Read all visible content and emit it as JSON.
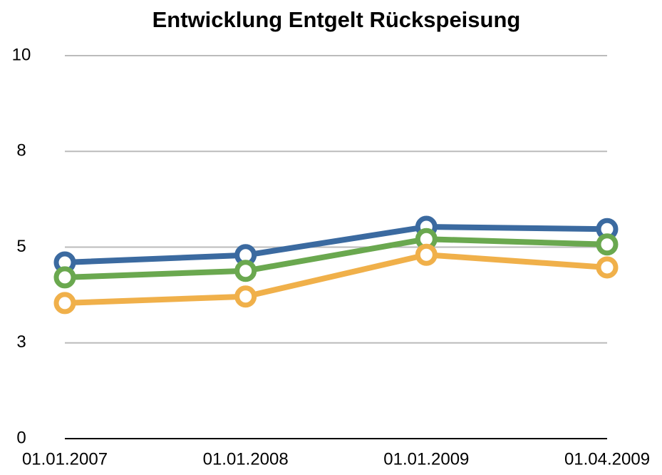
{
  "chart_data": {
    "type": "line",
    "title": "Entwicklung Entgelt Rückspeisung",
    "categories": [
      "01.01.2007",
      "01.01.2008",
      "01.01.2009",
      "01.04.2009"
    ],
    "series": [
      {
        "color": "#3b6aa0",
        "values": [
          4.6,
          4.79,
          5.53,
          5.47
        ]
      },
      {
        "color": "#6aa84f",
        "values": [
          4.21,
          4.38,
          5.21,
          5.07
        ]
      },
      {
        "color": "#f0b04a",
        "values": [
          3.54,
          3.71,
          4.8,
          4.47
        ]
      }
    ],
    "ylim": [
      0,
      10
    ],
    "yticks": [
      0,
      {
        "value": 2.5,
        "label": "3"
      },
      5,
      {
        "value": 7.5,
        "label": "8"
      },
      10
    ],
    "grid": true
  }
}
